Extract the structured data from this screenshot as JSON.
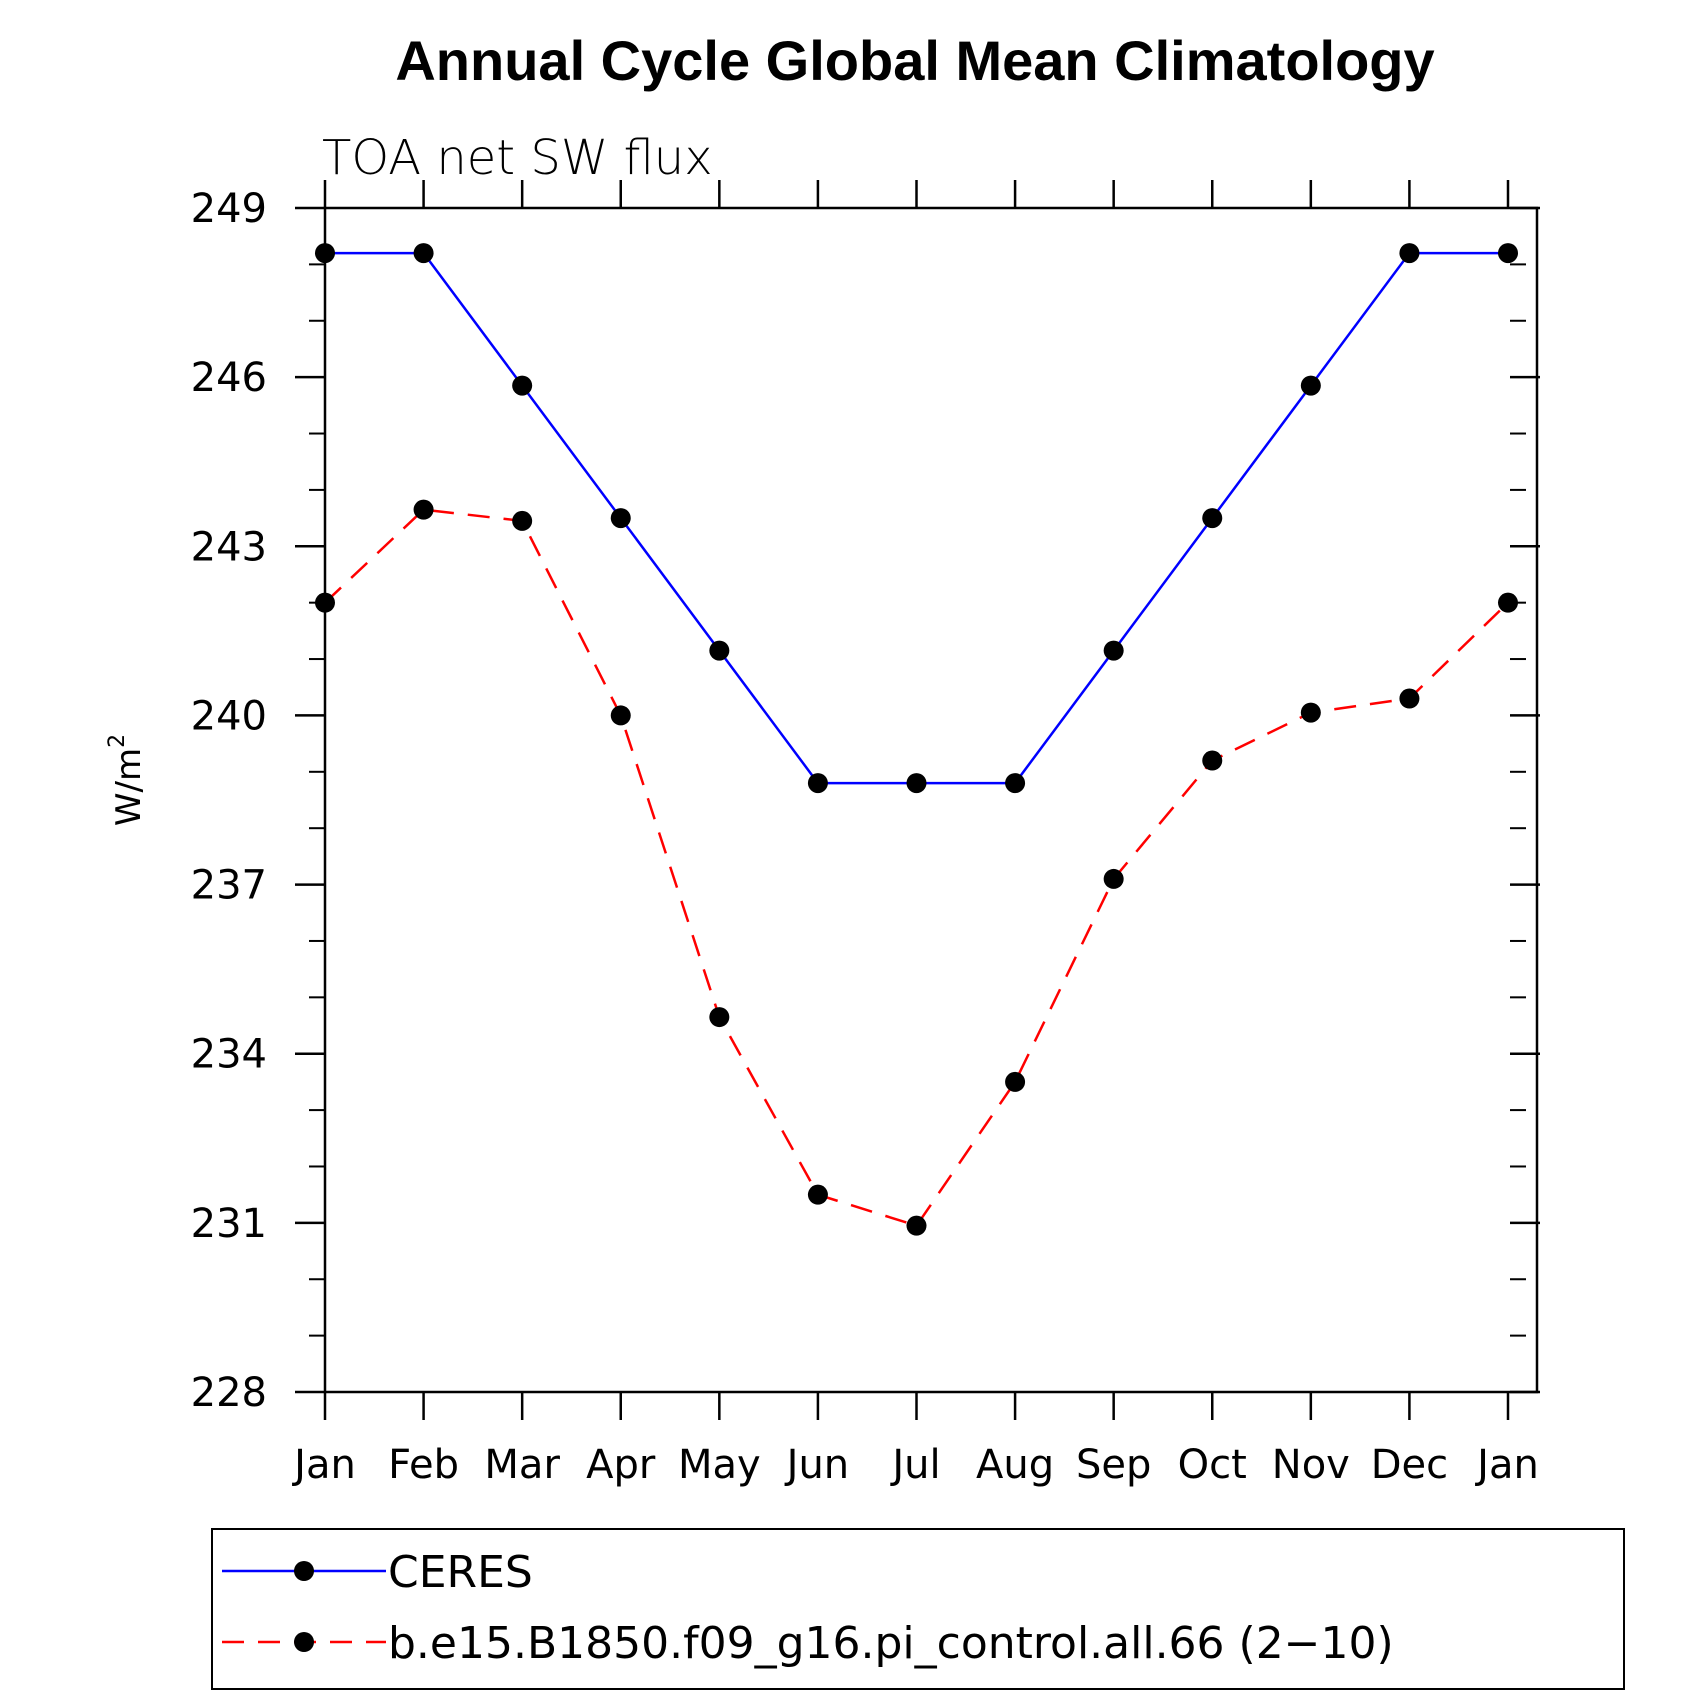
{
  "chart_data": {
    "type": "line",
    "title": "Annual Cycle Global Mean Climatology",
    "subtitle": "TOA net SW flux",
    "ylabel_base": "W/m",
    "ylabel_sup": "2",
    "xlabel": "",
    "categories": [
      "Jan",
      "Feb",
      "Mar",
      "Apr",
      "May",
      "Jun",
      "Jul",
      "Aug",
      "Sep",
      "Oct",
      "Nov",
      "Dec",
      "Jan"
    ],
    "ylim": [
      228,
      249
    ],
    "yticks": [
      228,
      231,
      234,
      237,
      240,
      243,
      246,
      249
    ],
    "yticks_labels": [
      "228",
      "231",
      "234",
      "237",
      "240",
      "243",
      "246",
      "249"
    ],
    "grid": false,
    "legend_position": "bottom",
    "series": [
      {
        "name": "CERES",
        "color": "#0000ff",
        "dash": "solid",
        "values": [
          248.2,
          248.2,
          245.85,
          243.5,
          241.15,
          238.8,
          238.8,
          238.8,
          241.15,
          243.5,
          245.85,
          248.2,
          248.2
        ]
      },
      {
        "name": "b.e15.B1850.f09_g16.pi_control.all.66 (2−10)",
        "color": "#ff0000",
        "dash": "dashed",
        "values": [
          242.0,
          243.65,
          243.45,
          240.0,
          234.65,
          231.5,
          230.95,
          233.5,
          237.1,
          239.2,
          240.05,
          240.3,
          242.0
        ]
      }
    ]
  }
}
